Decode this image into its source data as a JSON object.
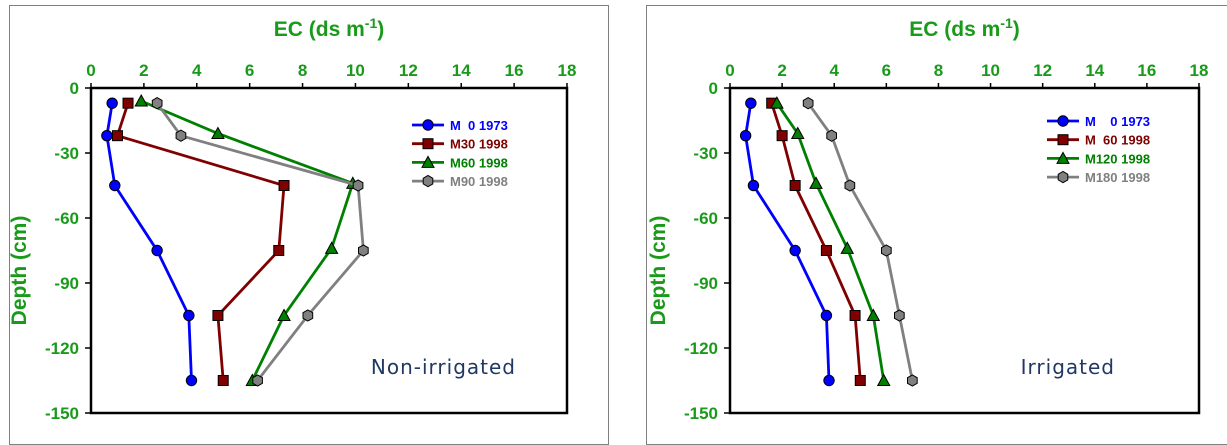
{
  "chart_data": [
    {
      "type": "line",
      "xlabel": "EC (ds m",
      "xlabel_sup": "-1",
      "xlabel_close": ")",
      "ylabel": "Depth (cm)",
      "xlim": [
        0,
        18
      ],
      "ylim": [
        -150,
        0
      ],
      "xticks": [
        "0",
        "2",
        "4",
        "6",
        "8",
        "10",
        "12",
        "14",
        "16",
        "18"
      ],
      "yticks": [
        "0",
        "-30",
        "-60",
        "-90",
        "-120",
        "-150"
      ],
      "annotation": "Non-irrigated",
      "legend_position": "top-right",
      "series": [
        {
          "name": "M  0 1973",
          "color": "#0000ff",
          "marker": "circle",
          "points": [
            [
              0.8,
              -7
            ],
            [
              0.6,
              -22
            ],
            [
              0.9,
              -45
            ],
            [
              2.5,
              -75
            ],
            [
              3.7,
              -105
            ],
            [
              3.8,
              -135
            ]
          ]
        },
        {
          "name": "M30 1998",
          "color": "#800000",
          "marker": "square",
          "points": [
            [
              1.4,
              -7
            ],
            [
              1.0,
              -22
            ],
            [
              7.3,
              -45
            ],
            [
              7.1,
              -75
            ],
            [
              4.8,
              -105
            ],
            [
              5.0,
              -135
            ]
          ]
        },
        {
          "name": "M60 1998",
          "color": "#008000",
          "marker": "triangle",
          "points": [
            [
              1.9,
              -6
            ],
            [
              4.8,
              -21
            ],
            [
              9.9,
              -44
            ],
            [
              9.1,
              -74
            ],
            [
              7.3,
              -105
            ],
            [
              6.1,
              -135
            ]
          ]
        },
        {
          "name": "M90 1998",
          "color": "#808080",
          "marker": "hexagon",
          "points": [
            [
              2.5,
              -7
            ],
            [
              3.4,
              -22
            ],
            [
              10.1,
              -45
            ],
            [
              10.3,
              -75
            ],
            [
              8.2,
              -105
            ],
            [
              6.3,
              -135
            ]
          ]
        }
      ]
    },
    {
      "type": "line",
      "xlabel": "EC (ds m",
      "xlabel_sup": "-1",
      "xlabel_close": ")",
      "ylabel": "Depth (cm)",
      "xlim": [
        0,
        18
      ],
      "ylim": [
        -150,
        0
      ],
      "xticks": [
        "0",
        "2",
        "4",
        "6",
        "8",
        "10",
        "12",
        "14",
        "16",
        "18"
      ],
      "yticks": [
        "0",
        "-30",
        "-60",
        "-90",
        "-120",
        "-150"
      ],
      "annotation": "Irrigated",
      "legend_position": "top-right",
      "series": [
        {
          "name": "M    0 1973",
          "color": "#0000ff",
          "marker": "circle",
          "points": [
            [
              0.8,
              -7
            ],
            [
              0.6,
              -22
            ],
            [
              0.9,
              -45
            ],
            [
              2.5,
              -75
            ],
            [
              3.7,
              -105
            ],
            [
              3.8,
              -135
            ]
          ]
        },
        {
          "name": "M  60 1998",
          "color": "#800000",
          "marker": "square",
          "points": [
            [
              1.6,
              -7
            ],
            [
              2.0,
              -22
            ],
            [
              2.5,
              -45
            ],
            [
              3.7,
              -75
            ],
            [
              4.8,
              -105
            ],
            [
              5.0,
              -135
            ]
          ]
        },
        {
          "name": "M120 1998",
          "color": "#008000",
          "marker": "triangle",
          "points": [
            [
              1.8,
              -7
            ],
            [
              2.6,
              -21
            ],
            [
              3.3,
              -44
            ],
            [
              4.5,
              -74
            ],
            [
              5.5,
              -105
            ],
            [
              5.9,
              -135
            ]
          ]
        },
        {
          "name": "M180 1998",
          "color": "#808080",
          "marker": "hexagon",
          "points": [
            [
              3.0,
              -7
            ],
            [
              3.9,
              -22
            ],
            [
              4.6,
              -45
            ],
            [
              6.0,
              -75
            ],
            [
              6.5,
              -105
            ],
            [
              7.0,
              -135
            ]
          ]
        }
      ]
    }
  ]
}
